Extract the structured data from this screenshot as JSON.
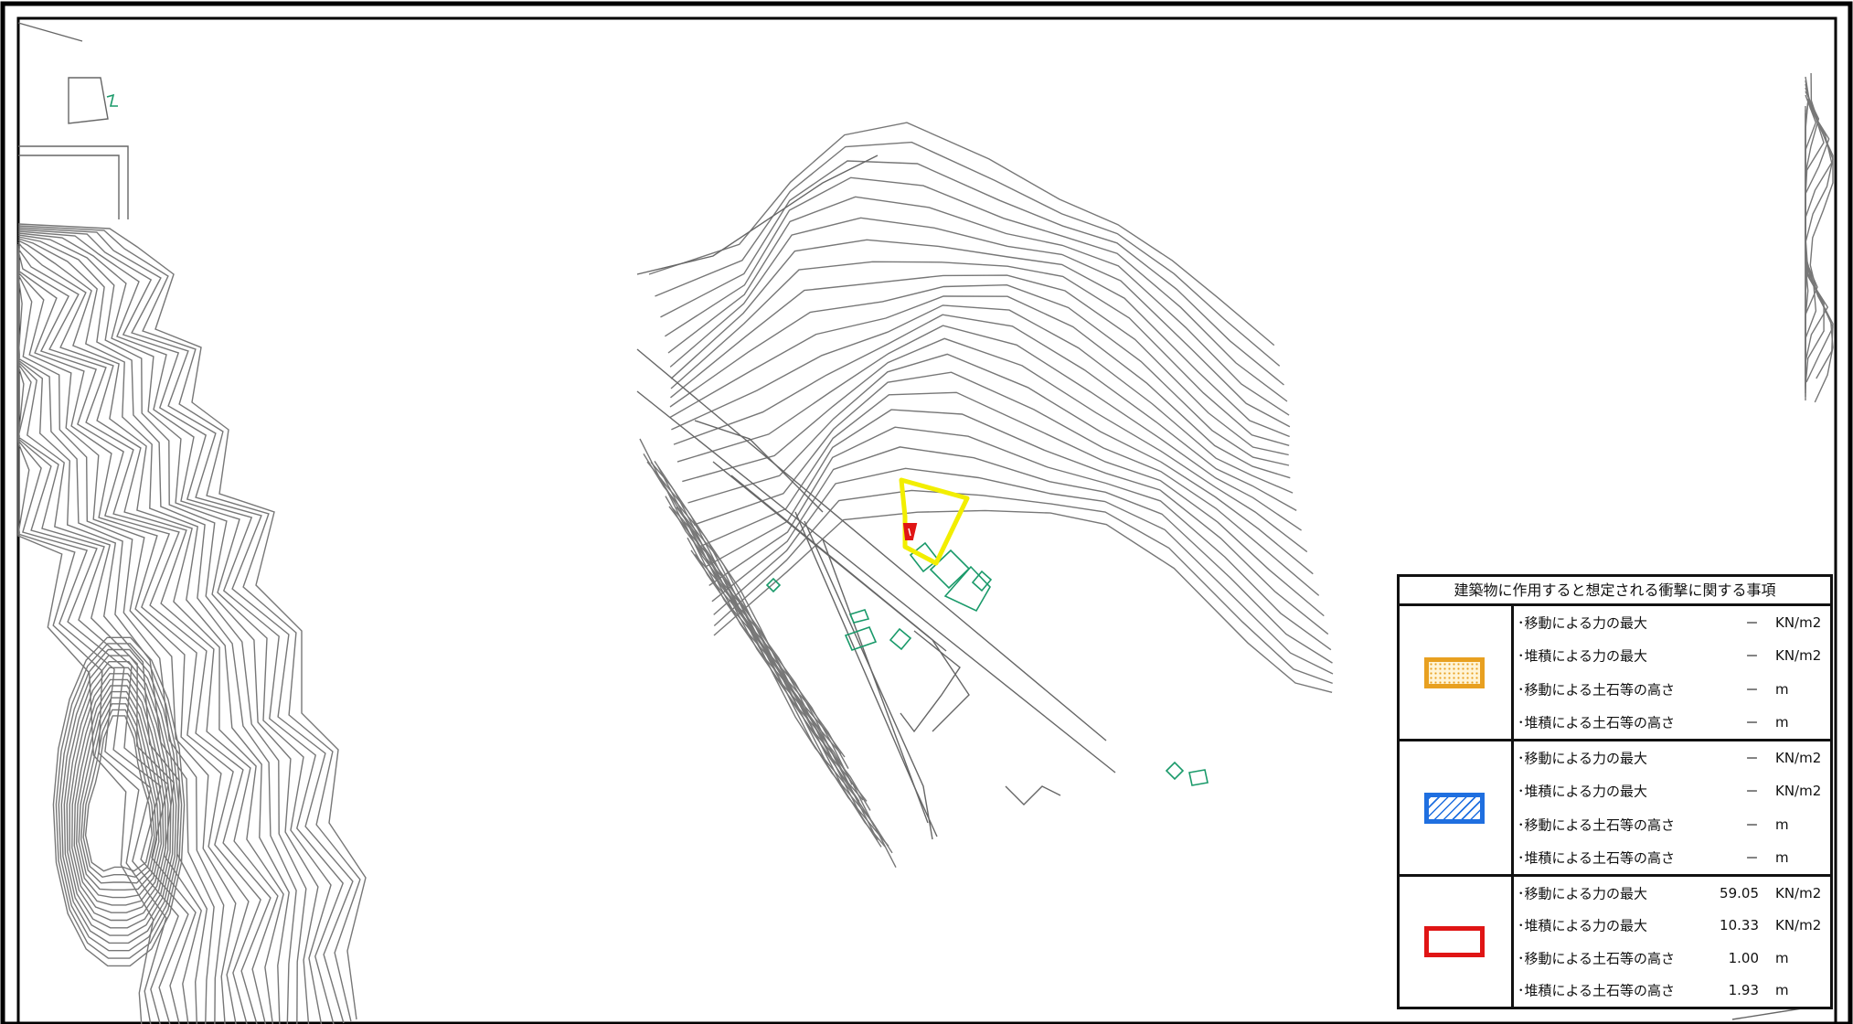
{
  "legend": {
    "title": "建築物に作用すると想定される衝撃に関する事項",
    "groups": [
      {
        "swatch": "orange-dotted",
        "rows": [
          {
            "label": "･移動による力の最大",
            "value": "－",
            "unit": "KN/m2"
          },
          {
            "label": "･堆積による力の最大",
            "value": "－",
            "unit": "KN/m2"
          },
          {
            "label": "･移動による土石等の高さ",
            "value": "－",
            "unit": "m"
          },
          {
            "label": "･堆積による土石等の高さ",
            "value": "－",
            "unit": "m"
          }
        ]
      },
      {
        "swatch": "blue-hatched",
        "rows": [
          {
            "label": "･移動による力の最大",
            "value": "－",
            "unit": "KN/m2"
          },
          {
            "label": "･堆積による力の最大",
            "value": "－",
            "unit": "KN/m2"
          },
          {
            "label": "･移動による土石等の高さ",
            "value": "－",
            "unit": "m"
          },
          {
            "label": "･堆積による土石等の高さ",
            "value": "－",
            "unit": "m"
          }
        ]
      },
      {
        "swatch": "red-outline",
        "rows": [
          {
            "label": "･移動による力の最大",
            "value": "59.05",
            "unit": "KN/m2"
          },
          {
            "label": "･堆積による力の最大",
            "value": "10.33",
            "unit": "KN/m2"
          },
          {
            "label": "･移動による土石等の高さ",
            "value": "1.00",
            "unit": "m"
          },
          {
            "label": "･堆積による土石等の高さ",
            "value": "1.93",
            "unit": "m"
          }
        ]
      }
    ]
  },
  "colors": {
    "contour": "#777777",
    "building": "#1a9a6a",
    "zone_yellow": "#f2ee00",
    "zone_red": "#e01515",
    "frame": "#000000",
    "swatch_orange": "#e8a020",
    "swatch_blue": "#1f6fe0",
    "swatch_red": "#e01515"
  }
}
